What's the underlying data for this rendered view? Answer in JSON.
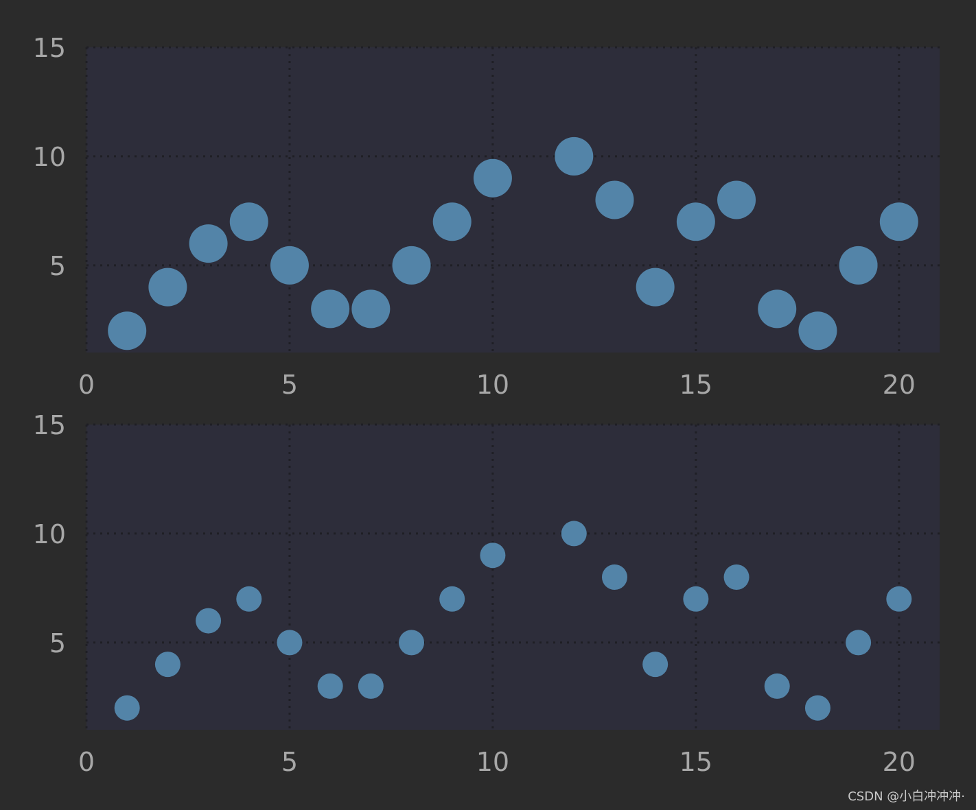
{
  "colors": {
    "figure_background": "#2b2b2b",
    "axes_background": "#2d2d3a",
    "grid": "#1f1f25",
    "marker": "#5384a8",
    "tick_text": "#a7a7a7"
  },
  "watermark": "CSDN @小白冲冲冲·",
  "chart_data": [
    {
      "type": "scatter",
      "marker_size": "large",
      "x": [
        1,
        2,
        3,
        4,
        5,
        6,
        7,
        8,
        9,
        10,
        12,
        13,
        14,
        15,
        16,
        17,
        18,
        19,
        20
      ],
      "y": [
        2,
        4,
        6,
        7,
        5,
        3,
        3,
        5,
        7,
        9,
        10,
        8,
        4,
        7,
        8,
        3,
        2,
        5,
        7
      ],
      "xlim": [
        0,
        21
      ],
      "ylim": [
        1,
        15
      ],
      "xticks": [
        0,
        5,
        10,
        15,
        20
      ],
      "yticks": [
        5,
        10,
        15
      ],
      "grid": true
    },
    {
      "type": "scatter",
      "marker_size": "small",
      "x": [
        1,
        2,
        3,
        4,
        5,
        6,
        7,
        8,
        9,
        10,
        12,
        13,
        14,
        15,
        16,
        17,
        18,
        19,
        20
      ],
      "y": [
        2,
        4,
        6,
        7,
        5,
        3,
        3,
        5,
        7,
        9,
        10,
        8,
        4,
        7,
        8,
        3,
        2,
        5,
        7
      ],
      "xlim": [
        0,
        21
      ],
      "ylim": [
        1,
        15
      ],
      "xticks": [
        0,
        5,
        10,
        15,
        20
      ],
      "yticks": [
        5,
        10,
        15
      ],
      "grid": true
    }
  ]
}
